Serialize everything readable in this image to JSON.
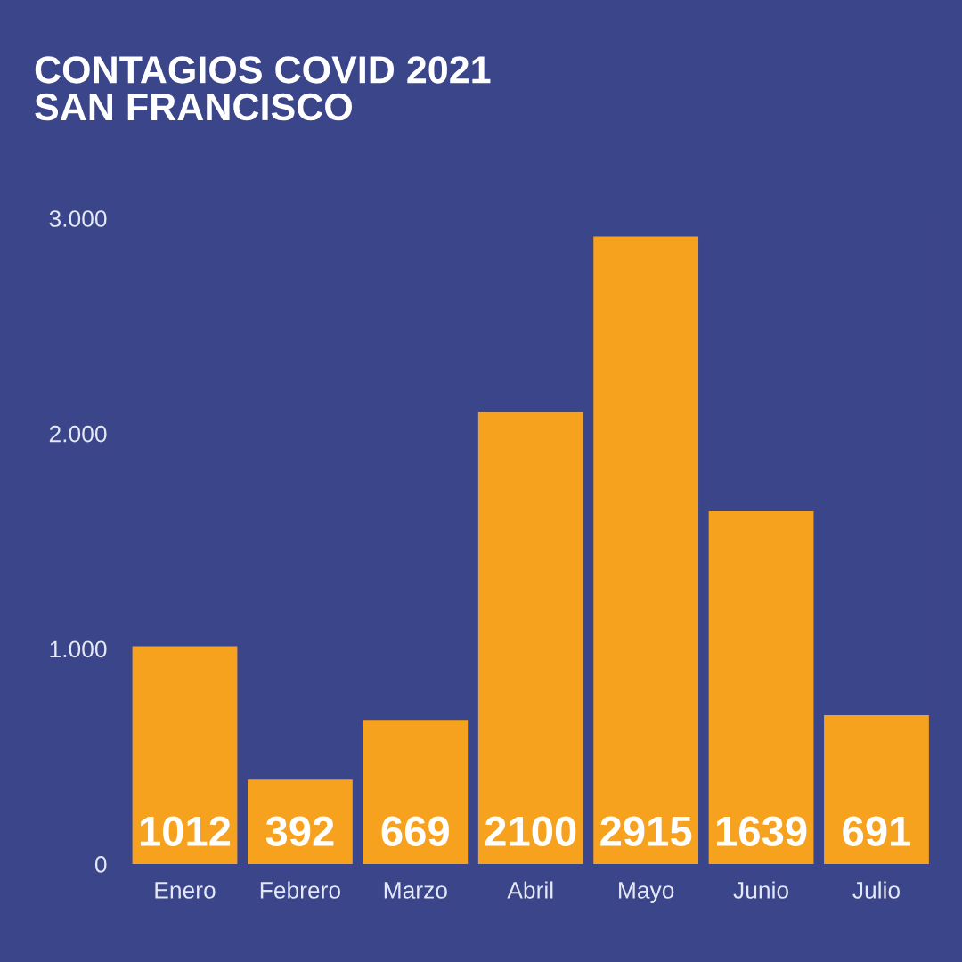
{
  "chart_data": {
    "type": "bar",
    "title": "CONTAGIOS COVID 2021\nSAN FRANCISCO",
    "categories": [
      "Enero",
      "Febrero",
      "Marzo",
      "Abril",
      "Mayo",
      "Junio",
      "Julio"
    ],
    "values": [
      1012,
      392,
      669,
      2100,
      2915,
      1639,
      691
    ],
    "color": "#f7a21f",
    "ylim": [
      0,
      3000
    ],
    "yticks": [
      0,
      {
        "value": 1000,
        "label": "1.000"
      },
      {
        "value": 2000,
        "label": "2.000"
      },
      {
        "value": 3000,
        "label": "3.000"
      }
    ],
    "data_labels": true
  }
}
